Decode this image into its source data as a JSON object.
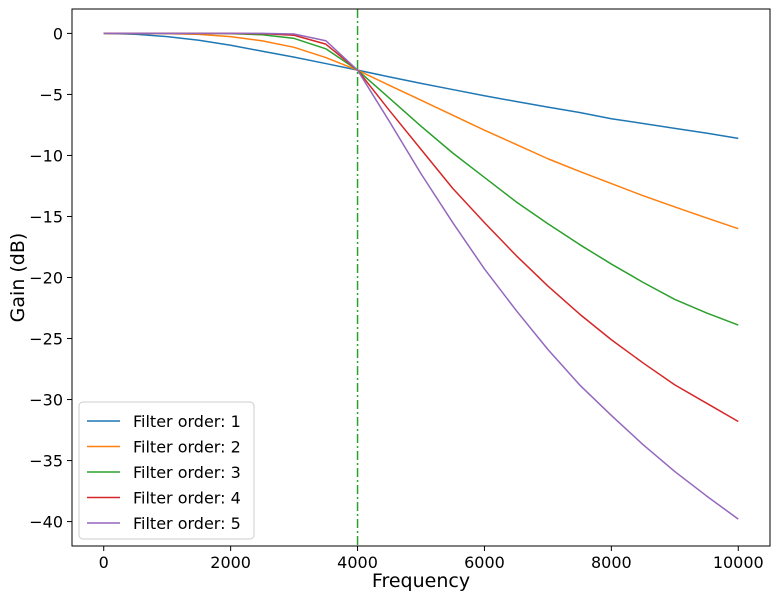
{
  "chart_data": {
    "type": "line",
    "title": "",
    "xlabel": "Frequency",
    "ylabel": "Gain (dB)",
    "xlim": [
      -500,
      10500
    ],
    "ylim": [
      -42,
      2
    ],
    "x_ticks": [
      0,
      2000,
      4000,
      6000,
      8000,
      10000
    ],
    "y_ticks": [
      0,
      -5,
      -10,
      -15,
      -20,
      -25,
      -30,
      -35,
      -40
    ],
    "x_tick_labels": [
      "0",
      "2000",
      "4000",
      "6000",
      "8000",
      "10000"
    ],
    "y_tick_labels": [
      "0",
      "−5",
      "−10",
      "−15",
      "−20",
      "−25",
      "−30",
      "−35",
      "−40"
    ],
    "x": [
      0,
      500,
      1000,
      1500,
      2000,
      2500,
      3000,
      3500,
      4000,
      4500,
      5000,
      5500,
      6000,
      6500,
      7000,
      7500,
      8000,
      8500,
      9000,
      9500,
      10000
    ],
    "cutoff_line": {
      "x": 4000,
      "color": "#2ca02c",
      "style": "dash-dot"
    },
    "legend_position": "lower-left",
    "grid": false,
    "series": [
      {
        "name": "Filter order: 1",
        "color": "#1f77b4",
        "values": [
          0,
          -0.07,
          -0.26,
          -0.56,
          -0.97,
          -1.46,
          -1.94,
          -2.47,
          -3.01,
          -3.56,
          -4.09,
          -4.6,
          -5.11,
          -5.58,
          -6.04,
          -6.48,
          -6.99,
          -7.38,
          -7.78,
          -8.17,
          -8.6
        ]
      },
      {
        "name": "Filter order: 2",
        "color": "#ff7f0e",
        "values": [
          0,
          0,
          -0.02,
          -0.08,
          -0.26,
          -0.61,
          -1.14,
          -1.98,
          -3.01,
          -4.25,
          -5.47,
          -6.7,
          -7.93,
          -9.1,
          -10.27,
          -11.31,
          -12.3,
          -13.3,
          -14.22,
          -15.12,
          -16.0
        ]
      },
      {
        "name": "Filter order: 3",
        "color": "#2ca02c",
        "values": [
          0,
          0,
          0,
          0,
          -0.02,
          -0.11,
          -0.41,
          -1.26,
          -3.01,
          -5.3,
          -7.6,
          -9.8,
          -11.8,
          -13.8,
          -15.6,
          -17.3,
          -18.9,
          -20.4,
          -21.8,
          -22.9,
          -23.9
        ]
      },
      {
        "name": "Filter order: 4",
        "color": "#d62728",
        "values": [
          0,
          0,
          0,
          0,
          0,
          -0.02,
          -0.15,
          -0.88,
          -3.01,
          -6.3,
          -9.5,
          -12.7,
          -15.5,
          -18.2,
          -20.7,
          -23.0,
          -25.1,
          -27.0,
          -28.8,
          -30.3,
          -31.8
        ]
      },
      {
        "name": "Filter order: 5",
        "color": "#9467bd",
        "values": [
          0,
          0,
          0,
          0,
          0,
          0,
          -0.05,
          -0.6,
          -3.01,
          -7.2,
          -11.5,
          -15.5,
          -19.3,
          -22.7,
          -25.9,
          -28.8,
          -31.3,
          -33.7,
          -35.9,
          -37.9,
          -39.8
        ]
      }
    ]
  }
}
